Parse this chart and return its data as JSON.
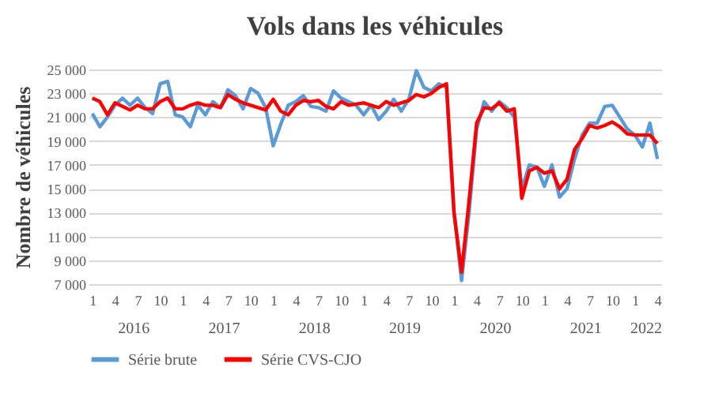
{
  "chart_data": {
    "type": "line",
    "title": "Vols dans les véhicules",
    "ylabel": "Nombre de véhicules",
    "categories": [
      "1",
      null,
      null,
      "4",
      null,
      null,
      "7",
      null,
      null,
      "10",
      null,
      null,
      "1",
      null,
      null,
      "4",
      null,
      null,
      "7",
      null,
      null,
      "10",
      null,
      null,
      "1",
      null,
      null,
      "4",
      null,
      null,
      "7",
      null,
      null,
      "10",
      null,
      null,
      "1",
      null,
      null,
      "4",
      null,
      null,
      "7",
      null,
      null,
      "10",
      null,
      null,
      "1",
      null,
      null,
      "4",
      null,
      null,
      "7",
      null,
      null,
      "10",
      null,
      null,
      "1",
      null,
      null,
      "4",
      null,
      null,
      "7",
      null,
      null,
      "10",
      null,
      null,
      "1",
      null,
      null,
      "4"
    ],
    "annotations": [
      "2016",
      "2017",
      "2018",
      "2019",
      "2020",
      "2021",
      "2022"
    ],
    "series": [
      {
        "name": "Série brute",
        "color": "#5b9bd5",
        "values": [
          21300,
          20200,
          21000,
          22000,
          22600,
          22000,
          22600,
          21800,
          21300,
          23800,
          24000,
          21200,
          21000,
          20200,
          22000,
          21200,
          22300,
          21800,
          23300,
          22800,
          21700,
          23400,
          23000,
          21800,
          18600,
          20400,
          22000,
          22300,
          22800,
          21900,
          21800,
          21500,
          23200,
          22600,
          22300,
          22000,
          21200,
          22000,
          20800,
          21500,
          22500,
          21500,
          22500,
          24900,
          23500,
          23200,
          23800,
          23500,
          13000,
          7300,
          13000,
          20000,
          22300,
          21500,
          22300,
          21800,
          21000,
          15000,
          17000,
          16800,
          15200,
          17000,
          14300,
          15000,
          17500,
          19500,
          20500,
          20500,
          21900,
          22000,
          21000,
          20000,
          19500,
          18500,
          20500,
          17500
        ]
      },
      {
        "name": "Série CVS-CJO",
        "color": "#ff0000",
        "values": [
          22600,
          22300,
          21200,
          22200,
          21900,
          21600,
          22000,
          21700,
          21700,
          22300,
          22600,
          21700,
          21700,
          22000,
          22200,
          22000,
          22000,
          21800,
          22900,
          22500,
          22200,
          22000,
          21800,
          21600,
          22500,
          21500,
          21200,
          22000,
          22400,
          22300,
          22400,
          21900,
          21700,
          22300,
          22000,
          22100,
          22200,
          22000,
          21800,
          22300,
          22000,
          22200,
          22400,
          22900,
          22700,
          23000,
          23500,
          23800,
          13000,
          8000,
          14000,
          20500,
          21800,
          21700,
          22200,
          21500,
          21700,
          14200,
          16500,
          16800,
          16300,
          16500,
          15000,
          15800,
          18300,
          19200,
          20300,
          20100,
          20300,
          20600,
          20200,
          19600,
          19500,
          19500,
          19500,
          18800
        ]
      }
    ],
    "ylim": [
      7000,
      25000
    ],
    "yticks": [
      {
        "value": 7000,
        "label": "7 000"
      },
      {
        "value": 9000,
        "label": "9 000"
      },
      {
        "value": 11000,
        "label": "11 000"
      },
      {
        "value": 13000,
        "label": "13 000"
      },
      {
        "value": 15000,
        "label": "15 000"
      },
      {
        "value": 17000,
        "label": "17 000"
      },
      {
        "value": 19000,
        "label": "19 000"
      },
      {
        "value": 21000,
        "label": "21 000"
      },
      {
        "value": 23000,
        "label": "23 000"
      },
      {
        "value": 25000,
        "label": "25 000"
      }
    ],
    "grid": "y",
    "legend": "bottom",
    "marker": "none",
    "line_style": "solid"
  }
}
